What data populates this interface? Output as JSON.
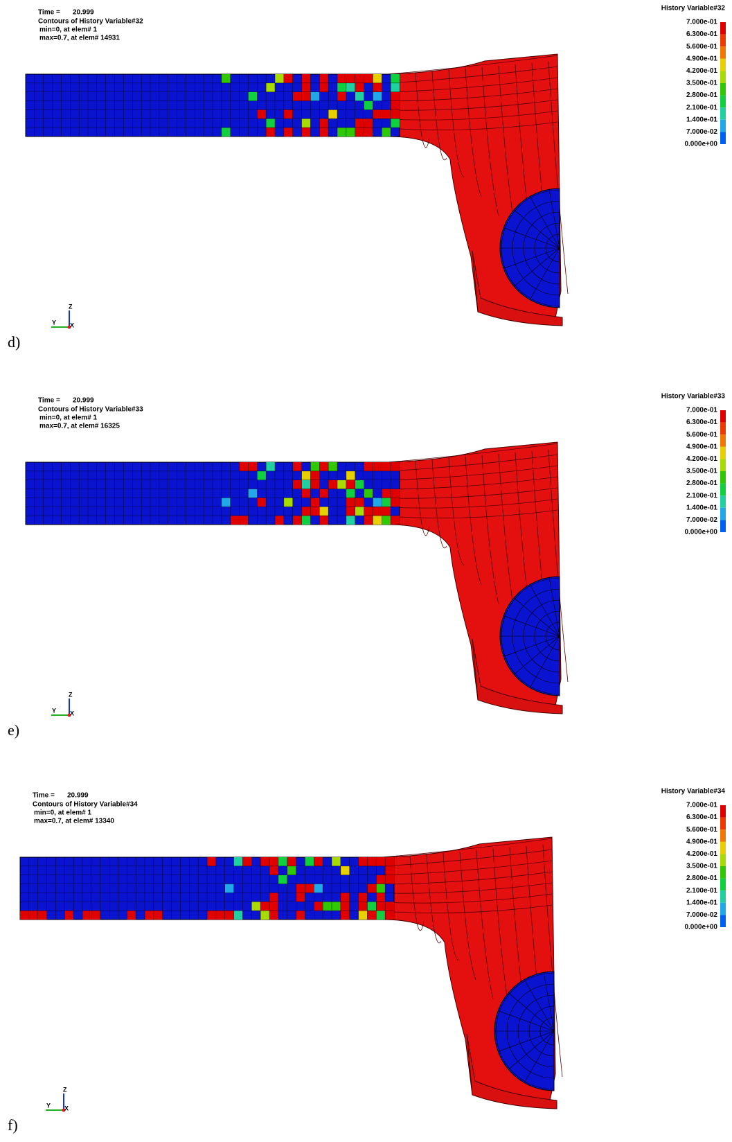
{
  "triad": {
    "z": "Z",
    "y": "Y",
    "x": "X"
  },
  "legend_labels": [
    "7.000e-01",
    "6.300e-01",
    "5.600e-01",
    "4.900e-01",
    "4.200e-01",
    "3.500e-01",
    "2.800e-01",
    "2.100e-01",
    "1.400e-01",
    "7.000e-02",
    "0.000e+00"
  ],
  "panels": [
    {
      "label": "d)",
      "time_label": "Time =",
      "time": "20.999",
      "contours": "Contours of History Variable#32",
      "min": "min=0, at elem# 1",
      "max": "max=0.7, at elem# 14931",
      "legend_title": "History Variable#32"
    },
    {
      "label": "e)",
      "time_label": "Time =",
      "time": "20.999",
      "contours": "Contours of History Variable#33",
      "min": "min=0, at elem# 1",
      "max": "max=0.7, at elem# 16325",
      "legend_title": "History Variable#33"
    },
    {
      "label": "f)",
      "time_label": "Time =",
      "time": "20.999",
      "contours": "Contours of History Variable#34",
      "min": "min=0, at elem# 1",
      "max": "max=0.7, at elem# 13340",
      "legend_title": "History Variable#34"
    }
  ]
}
